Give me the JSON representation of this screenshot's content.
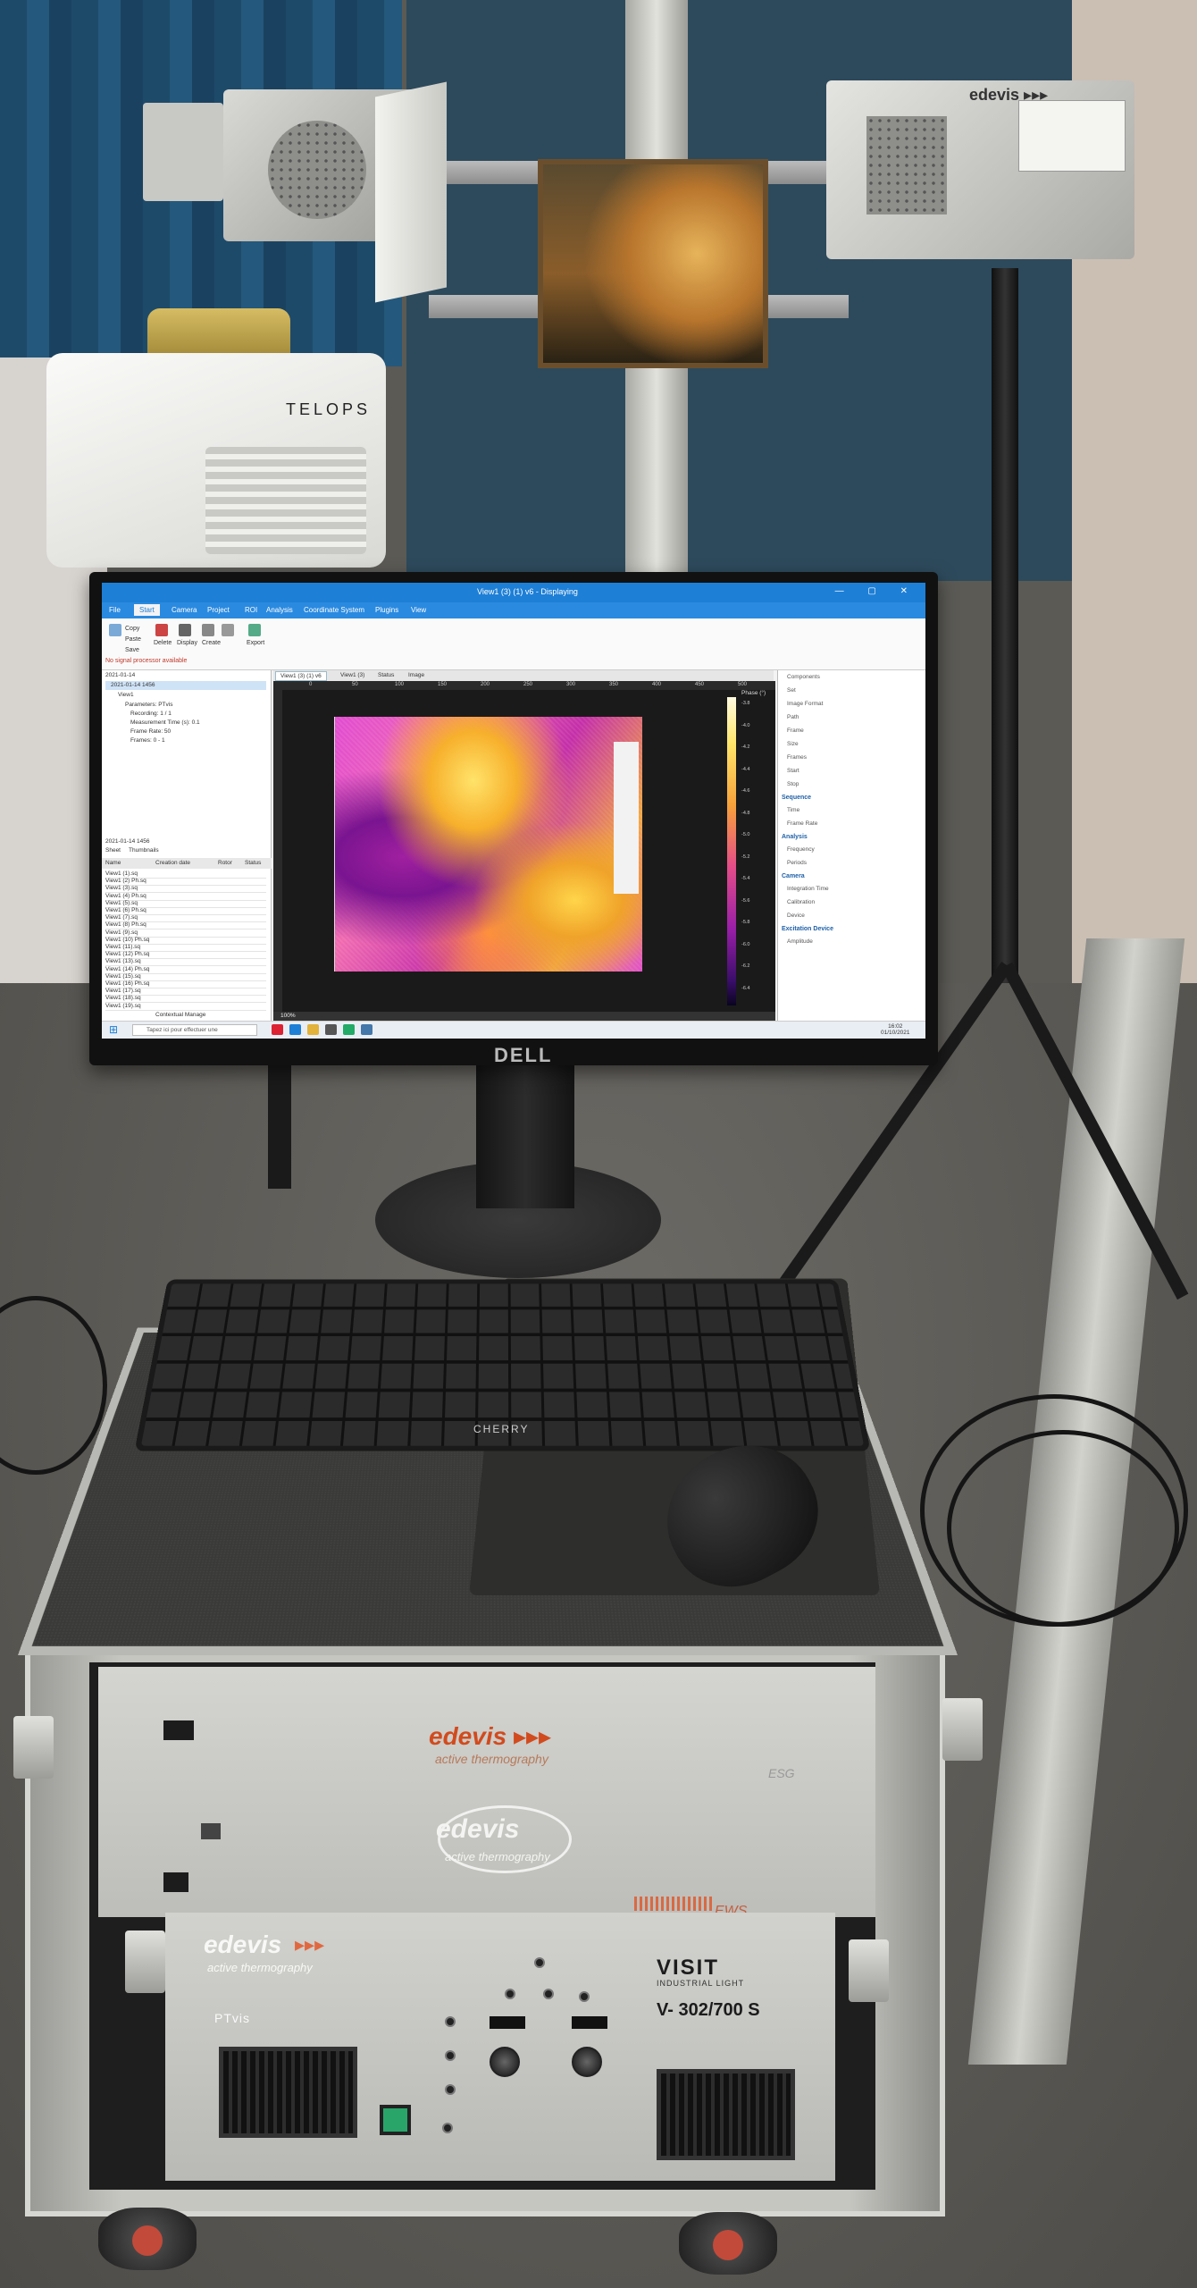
{
  "screen": {
    "window_title": "View1 (3) (1) v6 - Displaying",
    "window_controls": "— ▢ ✕",
    "menu": [
      "File",
      "Start",
      "Camera",
      "Project",
      "ROI",
      "Analysis",
      "Coordinate System",
      "Plugins",
      "View"
    ],
    "ribbon_labels": [
      "Copy",
      "Paste",
      "Save",
      "Delete",
      "Display",
      "Create",
      "Export"
    ],
    "status_message": "No signal processor available",
    "tree": {
      "date": "2021-01-14",
      "root": "2021-01-14 1456",
      "items": [
        "View1",
        "Parameters: PTvis",
        "Recording: 1 / 1",
        "Measurement Time (s): 0.1",
        "Frame Rate: 50",
        "Frames: 0 - 1"
      ]
    },
    "measurements": {
      "header": "2021-01-14 1456",
      "tabs": [
        "Sheet",
        "Thumbnails"
      ],
      "columns": [
        "Name",
        "Creation date",
        "Rotor",
        "Status"
      ],
      "rows": [
        "View1 (1).sq",
        "View1 (2) Ph.sq",
        "View1 (3).sq",
        "View1 (4) Ph.sq",
        "View1 (5).sq",
        "View1 (6) Ph.sq",
        "View1 (7).sq",
        "View1 (8) Ph.sq",
        "View1 (9).sq",
        "View1 (10) Ph.sq",
        "View1 (11).sq",
        "View1 (12) Ph.sq",
        "View1 (13).sq",
        "View1 (14) Ph.sq",
        "View1 (15).sq",
        "View1 (16) Ph.sq",
        "View1 (17).sq",
        "View1 (18).sq",
        "View1 (19).sq"
      ],
      "footer": "Contextual Manage"
    },
    "viewer": {
      "tab": "View1 (3) (1) v6",
      "other_tabs": [
        "View1 (3)",
        "Status",
        "Image"
      ],
      "colorbar_label": "Phase (°)",
      "colorbar_ticks": [
        "-3.8",
        "-4.0",
        "-4.2",
        "-4.4",
        "-4.6",
        "-4.8",
        "-5.0",
        "-5.2",
        "-5.4",
        "-5.6",
        "-5.8",
        "-6.0",
        "-6.2",
        "-6.4"
      ],
      "ruler_ticks": [
        "0",
        "50",
        "100",
        "150",
        "200",
        "250",
        "300",
        "350",
        "400",
        "450",
        "500"
      ],
      "zoom": "100%"
    },
    "properties": {
      "sections": [
        "Sequence",
        "Analysis",
        "Camera",
        "Excitation Device"
      ],
      "fields": [
        "Components",
        "Set",
        "Image Format",
        "Path",
        "Frame",
        "Size",
        "Frames",
        "Start",
        "Stop",
        "Time",
        "Frame Rate",
        "Frequency",
        "Periods",
        "Integration Time",
        "Calibration",
        "Device",
        "Amplitude"
      ]
    },
    "taskbar": {
      "search_placeholder": "Tapez ici pour effectuer une",
      "time": "16:02",
      "date": "01/10/2021"
    }
  },
  "labels": {
    "camera_brand": "TELOPS",
    "lamp_brand": "edevis ▸▸▸",
    "monitor_brand": "DELL",
    "keyboard_brand": "CHERRY",
    "esg_brand": "edevis ▸▸▸",
    "esg_tagline": "active thermography",
    "esg_model": "ESG",
    "esg_logo": "edevis",
    "esg_logo_tag": "active thermography",
    "ews_model": "EWS",
    "pt_brand": "edevis",
    "pt_arrows": "▸▸▸",
    "pt_tagline": "active thermography",
    "pt_model": "PTvis",
    "visit_brand": "VISIT",
    "visit_sub": "INDUSTRIAL LIGHT",
    "visit_model": "V- 302/700 S"
  }
}
